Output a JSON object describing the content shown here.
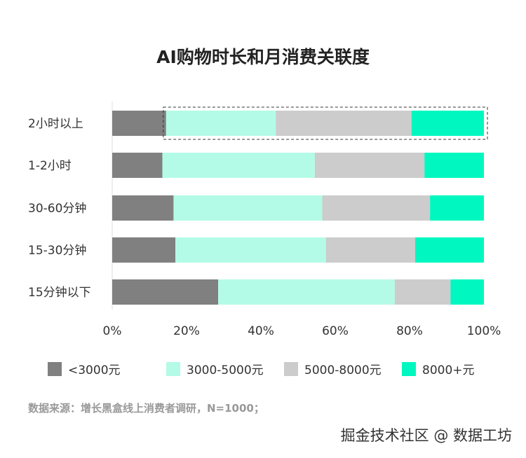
{
  "chart_data": {
    "type": "bar",
    "orientation": "horizontal",
    "stacked": "percent",
    "title": "AI购物时长和月消费关联度",
    "categories": [
      "2小时以上",
      "1-2小时",
      "30-60分钟",
      "15-30分钟",
      "15分钟以下"
    ],
    "series": [
      {
        "name": "<3000元",
        "color": "#808080",
        "values": [
          14.5,
          13.5,
          16.5,
          17,
          28.5
        ]
      },
      {
        "name": "3000-5000元",
        "color": "#B3FBE6",
        "values": [
          29.5,
          41,
          40,
          40.5,
          47.5
        ]
      },
      {
        "name": "5000-8000元",
        "color": "#CCCCCC",
        "values": [
          36.5,
          29.5,
          29,
          24,
          15
        ]
      },
      {
        "name": "8000+元",
        "color": "#00F8C0",
        "values": [
          19.5,
          16,
          14.5,
          18.5,
          9
        ]
      }
    ],
    "xlim": [
      0,
      100
    ],
    "xticks": [
      "0%",
      "20%",
      "40%",
      "60%",
      "80%",
      "100%"
    ],
    "legend_position": "bottom",
    "grid": false,
    "highlighted_category": "2小时以上"
  },
  "source": "数据来源：增长黑盒线上消费者调研，N=1000；",
  "watermark": "掘金技术社区 @ 数据工坊"
}
